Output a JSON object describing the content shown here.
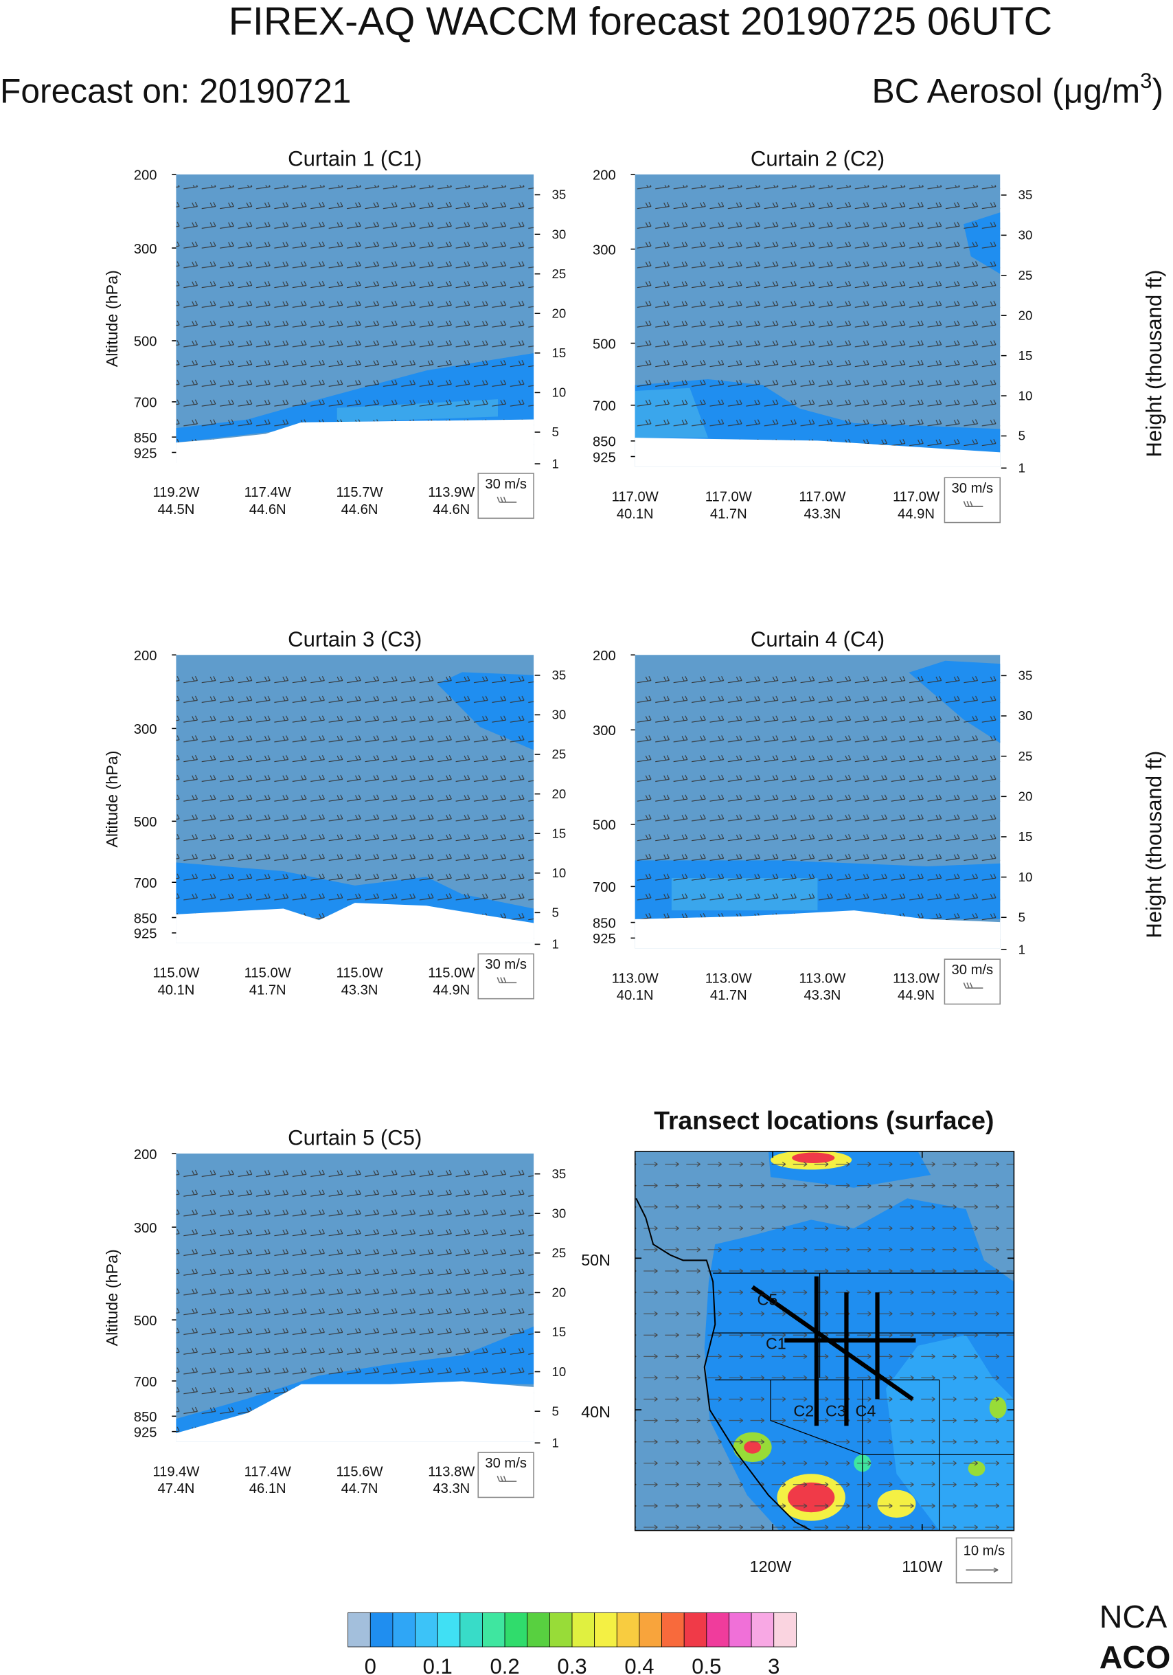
{
  "header": {
    "title": "FIREX-AQ WACCM forecast 20190725 06UTC",
    "forecast_on": "Forecast on: 20190721",
    "quantity": "BC Aerosol (μg/m",
    "quantity_sup": "3",
    "quantity_end": ")"
  },
  "axes": {
    "left_label": "Altitude (hPa)",
    "right_label": "Height (thousand ft)",
    "left_ticks": [
      200,
      300,
      500,
      700,
      850,
      925
    ],
    "right_ticks": [
      35,
      30,
      25,
      20,
      15,
      10,
      5,
      1
    ]
  },
  "curtains": [
    {
      "title": "Curtain 1 (C1)",
      "wind_key": "30 m/s",
      "x_labels": [
        {
          "lon": "119.2W",
          "lat": "44.5N"
        },
        {
          "lon": "117.4W",
          "lat": "44.6N"
        },
        {
          "lon": "115.7W",
          "lat": "44.6N"
        },
        {
          "lon": "113.9W",
          "lat": "44.6N"
        }
      ]
    },
    {
      "title": "Curtain 2 (C2)",
      "wind_key": "30 m/s",
      "x_labels": [
        {
          "lon": "117.0W",
          "lat": "40.1N"
        },
        {
          "lon": "117.0W",
          "lat": "41.7N"
        },
        {
          "lon": "117.0W",
          "lat": "43.3N"
        },
        {
          "lon": "117.0W",
          "lat": "44.9N"
        }
      ]
    },
    {
      "title": "Curtain 3 (C3)",
      "wind_key": "30 m/s",
      "x_labels": [
        {
          "lon": "115.0W",
          "lat": "40.1N"
        },
        {
          "lon": "115.0W",
          "lat": "41.7N"
        },
        {
          "lon": "115.0W",
          "lat": "43.3N"
        },
        {
          "lon": "115.0W",
          "lat": "44.9N"
        }
      ]
    },
    {
      "title": "Curtain 4 (C4)",
      "wind_key": "30 m/s",
      "x_labels": [
        {
          "lon": "113.0W",
          "lat": "40.1N"
        },
        {
          "lon": "113.0W",
          "lat": "41.7N"
        },
        {
          "lon": "113.0W",
          "lat": "43.3N"
        },
        {
          "lon": "113.0W",
          "lat": "44.9N"
        }
      ]
    },
    {
      "title": "Curtain 5 (C5)",
      "wind_key": "30 m/s",
      "x_labels": [
        {
          "lon": "119.4W",
          "lat": "47.4N"
        },
        {
          "lon": "117.4W",
          "lat": "46.1N"
        },
        {
          "lon": "115.6W",
          "lat": "44.7N"
        },
        {
          "lon": "113.8W",
          "lat": "43.3N"
        }
      ]
    }
  ],
  "map": {
    "title": "Transect locations (surface)",
    "lat_labels": [
      "50N",
      "40N"
    ],
    "lon_labels": [
      "120W",
      "110W"
    ],
    "transects": [
      "C1",
      "C2",
      "C3",
      "C4",
      "C5"
    ],
    "wind_key": "10 m/s"
  },
  "colorbar": {
    "labels": [
      0,
      0.1,
      0.2,
      0.3,
      0.4,
      0.5,
      3
    ],
    "colors": [
      "#a3bfdc",
      "#5f9ccc",
      "#1f8ef0",
      "#2fa6f6",
      "#3cc3f8",
      "#40e0f4",
      "#38dcc8",
      "#3fe6a0",
      "#30dc6c",
      "#58d040",
      "#98dc38",
      "#e0f040",
      "#f4f044",
      "#f8cc40",
      "#f8a43c",
      "#f86a3c",
      "#f03a48",
      "#f03c9c",
      "#f070d8",
      "#f8a8e4",
      "#fad4e0"
    ]
  },
  "logo": {
    "line1": "NCA",
    "line2": "ACO"
  }
}
